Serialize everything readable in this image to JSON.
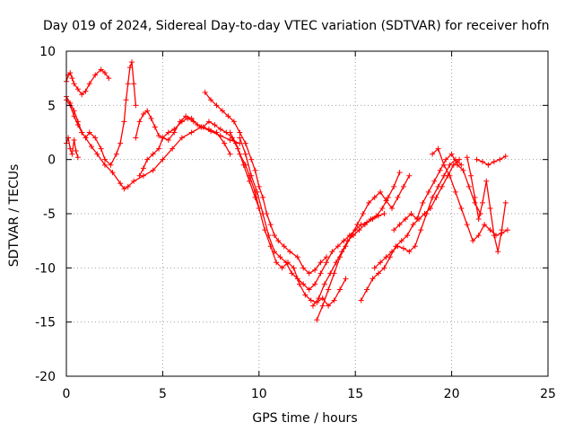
{
  "chart_data": {
    "type": "scatter",
    "title": "Day 019 of 2024, Sidereal Day-to-day VTEC variation (SDTVAR) for receiver hofn",
    "xlabel": "GPS time / hours",
    "ylabel": "SDTVAR / TECUs",
    "xlim": [
      0,
      25
    ],
    "ylim": [
      -20,
      10
    ],
    "xticks": [
      0,
      5,
      10,
      15,
      20,
      25
    ],
    "yticks": [
      -20,
      -15,
      -10,
      -5,
      0,
      5,
      10
    ],
    "xtick_labels": [
      "0",
      "5",
      "10",
      "15",
      "20",
      "25"
    ],
    "ytick_labels": [
      "-20",
      "-15",
      "-10",
      "-5",
      "0",
      "5",
      "10"
    ],
    "grid": true,
    "legend": "none",
    "marker": "plus",
    "color": "#ff0000",
    "series": [
      {
        "name": "trace-1",
        "x": [
          0.0,
          0.1,
          0.2,
          0.3,
          0.4,
          0.6,
          0.8,
          1.0,
          1.2,
          1.5,
          1.8,
          2.0,
          2.2
        ],
        "y": [
          7.2,
          7.8,
          8.0,
          7.5,
          7.0,
          6.5,
          6.0,
          6.3,
          7.0,
          7.8,
          8.3,
          8.0,
          7.5
        ]
      },
      {
        "name": "trace-2",
        "x": [
          0.0,
          0.2,
          0.4,
          0.6,
          0.8,
          1.0,
          1.2,
          1.5,
          1.8,
          2.0,
          2.3,
          2.6,
          2.8,
          3.0,
          3.1,
          3.2,
          3.3,
          3.4,
          3.5,
          3.6
        ],
        "y": [
          5.5,
          5.0,
          4.0,
          3.2,
          2.5,
          2.0,
          2.5,
          2.0,
          1.0,
          0.0,
          -0.5,
          0.5,
          1.5,
          3.5,
          5.5,
          7.0,
          8.5,
          9.0,
          7.0,
          5.0
        ]
      },
      {
        "name": "trace-3",
        "x": [
          0.0,
          0.2,
          0.4,
          0.6,
          0.8,
          1.0,
          1.3,
          1.6,
          2.0,
          2.4,
          2.8,
          3.0,
          3.2,
          3.5,
          4.0,
          4.5,
          5.0,
          5.5,
          6.0,
          6.5,
          7.0,
          7.5,
          8.0,
          8.5,
          9.0
        ],
        "y": [
          5.8,
          5.2,
          4.5,
          3.5,
          2.5,
          2.0,
          1.2,
          0.5,
          -0.5,
          -1.2,
          -2.2,
          -2.7,
          -2.5,
          -2.0,
          -1.5,
          -1.0,
          0.0,
          1.0,
          2.0,
          2.5,
          3.0,
          2.6,
          2.2,
          1.8,
          1.5
        ]
      },
      {
        "name": "trace-4",
        "x": [
          0.0,
          0.1,
          0.2,
          0.3,
          0.4,
          0.5,
          0.6
        ],
        "y": [
          1.5,
          2.0,
          1.0,
          0.5,
          1.8,
          0.8,
          0.2
        ]
      },
      {
        "name": "trace-5",
        "x": [
          3.6,
          3.8,
          4.0,
          4.2,
          4.4,
          4.6,
          4.8,
          5.0,
          5.3,
          5.6,
          5.9,
          6.2,
          6.5,
          6.8,
          7.1,
          7.4,
          7.7,
          8.0,
          8.3,
          8.6,
          8.9,
          9.2,
          9.5,
          9.8,
          10.0
        ],
        "y": [
          2.0,
          3.5,
          4.2,
          4.5,
          3.8,
          3.0,
          2.2,
          2.0,
          1.8,
          2.5,
          3.5,
          4.0,
          3.8,
          3.2,
          3.0,
          3.5,
          3.2,
          2.8,
          2.5,
          2.0,
          1.0,
          -0.5,
          -2.0,
          -3.5,
          -4.5
        ]
      },
      {
        "name": "trace-6",
        "x": [
          3.8,
          4.0,
          4.2,
          4.5,
          4.8,
          5.0,
          5.3,
          5.6,
          6.0,
          6.3,
          6.6,
          7.0,
          7.4,
          7.8,
          8.2,
          8.5
        ],
        "y": [
          -1.5,
          -0.8,
          0.0,
          0.5,
          1.0,
          2.0,
          2.5,
          2.8,
          3.5,
          3.8,
          3.5,
          3.0,
          2.8,
          2.5,
          1.5,
          0.5
        ]
      },
      {
        "name": "trace-7",
        "x": [
          7.2,
          7.5,
          7.8,
          8.1,
          8.4,
          8.7,
          9.0,
          9.3,
          9.6,
          9.8,
          10.0,
          10.2,
          10.4,
          10.6,
          10.8,
          11.0,
          11.3,
          11.6,
          12.0,
          12.3,
          12.6,
          12.9,
          13.2,
          13.5
        ],
        "y": [
          6.2,
          5.5,
          5.0,
          4.5,
          4.0,
          3.5,
          2.5,
          1.5,
          0.0,
          -1.0,
          -2.5,
          -3.5,
          -5.0,
          -6.0,
          -7.0,
          -7.5,
          -8.0,
          -8.5,
          -9.0,
          -10.0,
          -10.5,
          -10.2,
          -9.5,
          -9.0
        ]
      },
      {
        "name": "trace-8",
        "x": [
          8.5,
          8.8,
          9.0,
          9.3,
          9.5,
          9.8,
          10.0,
          10.3,
          10.6,
          10.9,
          11.2,
          11.5,
          11.8,
          12.1,
          12.4,
          12.7,
          13.0,
          13.3,
          13.6,
          13.9,
          14.2,
          14.5
        ],
        "y": [
          2.5,
          1.5,
          0.5,
          -0.5,
          -1.5,
          -3.0,
          -4.5,
          -6.5,
          -8.0,
          -9.5,
          -10.0,
          -9.5,
          -10.0,
          -11.5,
          -12.5,
          -13.0,
          -13.2,
          -12.8,
          -13.5,
          -13.0,
          -12.0,
          -11.0
        ]
      },
      {
        "name": "trace-9",
        "x": [
          9.0,
          9.3,
          9.6,
          9.9,
          10.2,
          10.5,
          10.8,
          11.1,
          11.4,
          11.7,
          12.0,
          12.3,
          12.6,
          12.9,
          13.2,
          13.5,
          13.8,
          14.1,
          14.4,
          14.7,
          15.0,
          15.3,
          15.6,
          15.9,
          16.2,
          16.5
        ],
        "y": [
          2.0,
          0.5,
          -1.5,
          -3.0,
          -5.0,
          -7.0,
          -8.5,
          -9.0,
          -9.5,
          -10.5,
          -11.0,
          -11.5,
          -12.0,
          -11.5,
          -10.5,
          -9.5,
          -8.5,
          -8.0,
          -7.5,
          -7.0,
          -6.5,
          -6.0,
          -5.8,
          -5.5,
          -5.2,
          -5.0
        ]
      },
      {
        "name": "trace-10",
        "x": [
          13.0,
          13.3,
          13.6,
          13.9,
          14.2,
          14.5,
          14.8,
          15.1,
          15.4,
          15.7,
          16.0,
          16.3,
          16.6,
          16.9,
          17.2,
          17.5,
          17.8
        ],
        "y": [
          -14.8,
          -13.5,
          -12.0,
          -10.5,
          -9.0,
          -8.0,
          -7.0,
          -6.0,
          -5.0,
          -4.0,
          -3.5,
          -3.0,
          -3.8,
          -4.5,
          -3.5,
          -2.5,
          -1.5
        ]
      },
      {
        "name": "trace-11",
        "x": [
          12.8,
          13.1,
          13.4,
          13.7,
          14.0,
          14.3,
          14.6,
          14.9,
          15.2,
          15.5,
          15.8,
          16.1,
          16.4,
          16.7,
          17.0,
          17.3
        ],
        "y": [
          -13.5,
          -12.8,
          -11.5,
          -10.5,
          -9.5,
          -8.5,
          -7.5,
          -7.0,
          -6.5,
          -6.0,
          -5.5,
          -5.2,
          -4.5,
          -3.5,
          -2.5,
          -1.2
        ]
      },
      {
        "name": "trace-12",
        "x": [
          15.3,
          15.6,
          15.9,
          16.2,
          16.5,
          16.8,
          17.1,
          17.4,
          17.7,
          18.0,
          18.3,
          18.6,
          18.9,
          19.2,
          19.5,
          19.8,
          20.1,
          20.4
        ],
        "y": [
          -13.0,
          -12.0,
          -11.0,
          -10.5,
          -10.0,
          -9.0,
          -8.0,
          -7.5,
          -7.0,
          -6.0,
          -5.5,
          -5.0,
          -4.5,
          -3.5,
          -2.5,
          -1.5,
          -0.5,
          0.0
        ]
      },
      {
        "name": "trace-13",
        "x": [
          16.0,
          16.3,
          16.6,
          16.9,
          17.2,
          17.5,
          17.8,
          18.1,
          18.4,
          18.7,
          19.0,
          19.3,
          19.6,
          19.9,
          20.2,
          20.5
        ],
        "y": [
          -10.0,
          -9.5,
          -9.0,
          -8.5,
          -8.0,
          -8.2,
          -8.5,
          -8.0,
          -6.5,
          -5.0,
          -3.5,
          -2.5,
          -1.5,
          -0.5,
          0.0,
          -0.5
        ]
      },
      {
        "name": "trace-14",
        "x": [
          17.0,
          17.3,
          17.6,
          17.9,
          18.2,
          18.5,
          18.8,
          19.1,
          19.4,
          19.7,
          20.0,
          20.3,
          20.6,
          20.9,
          21.2,
          21.5
        ],
        "y": [
          -6.5,
          -6.0,
          -5.5,
          -5.0,
          -5.5,
          -4.0,
          -3.0,
          -2.0,
          -1.0,
          0.0,
          0.5,
          -0.5,
          -1.0,
          -2.5,
          -4.0,
          -5.0
        ]
      },
      {
        "name": "trace-15",
        "x": [
          19.0,
          19.3,
          19.6,
          19.9,
          20.2,
          20.5,
          20.8,
          21.1,
          21.4,
          21.7,
          22.0,
          22.3,
          22.6,
          22.9
        ],
        "y": [
          0.5,
          1.0,
          -0.5,
          -1.5,
          -3.0,
          -4.5,
          -6.0,
          -7.5,
          -7.0,
          -6.0,
          -6.5,
          -7.0,
          -6.8,
          -6.5
        ]
      },
      {
        "name": "trace-16",
        "x": [
          20.8,
          21.0,
          21.2,
          21.4,
          21.6,
          21.8,
          22.0,
          22.2,
          22.4,
          22.6,
          22.8
        ],
        "y": [
          0.2,
          -1.5,
          -3.5,
          -5.5,
          -4.0,
          -2.0,
          -4.5,
          -7.0,
          -8.5,
          -6.5,
          -4.0
        ]
      },
      {
        "name": "trace-17",
        "x": [
          21.3,
          21.6,
          21.9,
          22.2,
          22.5,
          22.8
        ],
        "y": [
          0.0,
          -0.2,
          -0.5,
          -0.2,
          0.0,
          0.3
        ]
      }
    ]
  }
}
